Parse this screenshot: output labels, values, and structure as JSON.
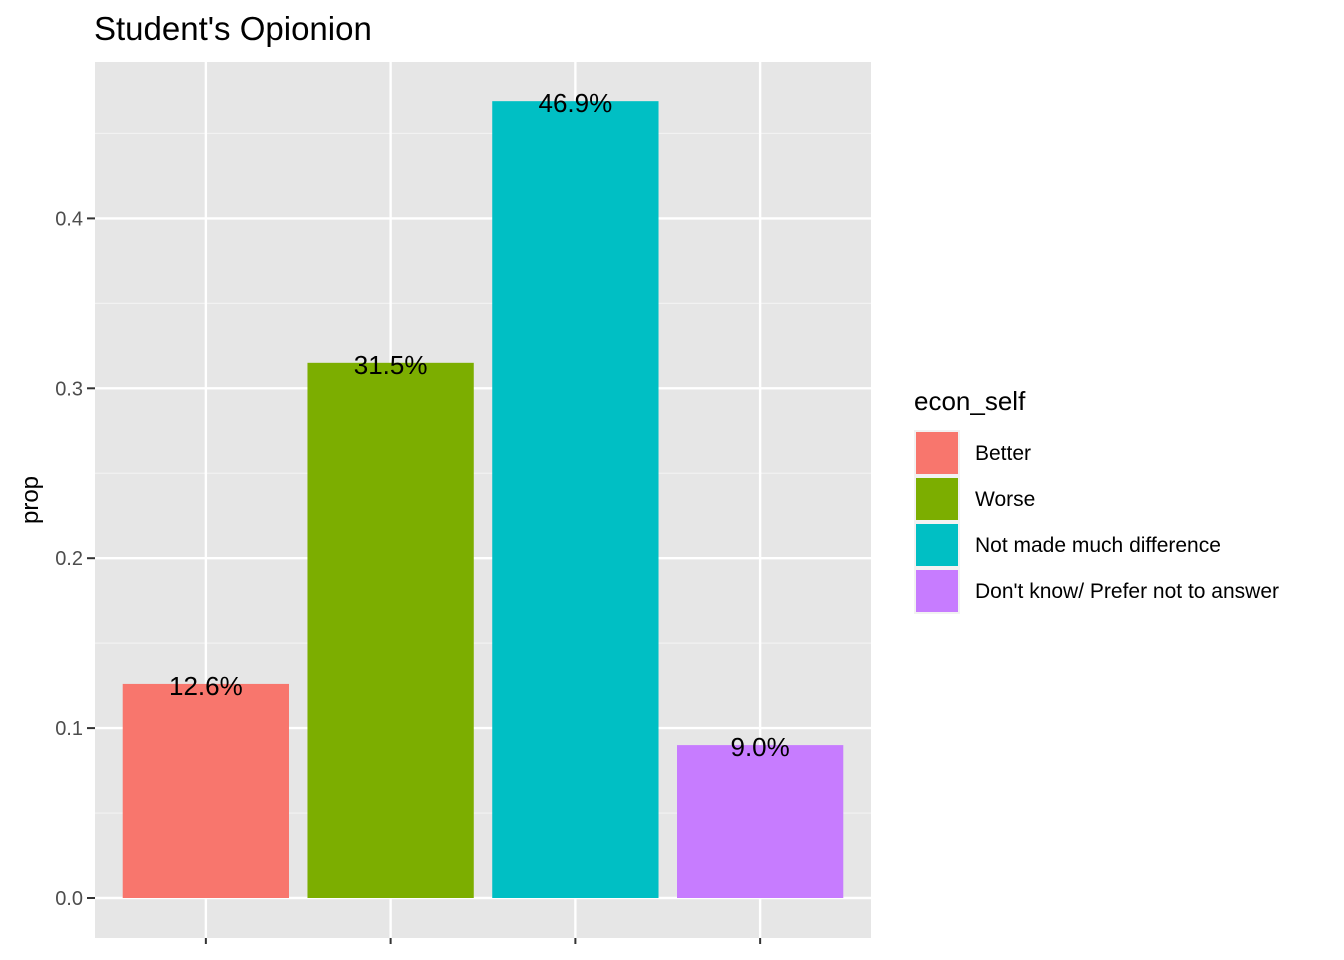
{
  "chart_data": {
    "type": "bar",
    "title": "Student's Opionion",
    "xlabel": "",
    "ylabel": "prop",
    "ylim": [
      0,
      0.48
    ],
    "y_ticks": [
      0.0,
      0.1,
      0.2,
      0.3,
      0.4
    ],
    "y_tick_labels": [
      "0.0",
      "0.1",
      "0.2",
      "0.3",
      "0.4"
    ],
    "categories": [
      "Better",
      "Worse",
      "Not made much difference",
      "Don't know/ Prefer not to answer"
    ],
    "values": [
      0.126,
      0.315,
      0.469,
      0.09
    ],
    "data_labels": [
      "12.6%",
      "31.5%",
      "46.9%",
      "9.0%"
    ],
    "colors": [
      "#F8766D",
      "#7CAE00",
      "#00BFC4",
      "#C77CFF"
    ],
    "legend": {
      "title": "econ_self",
      "position": "right",
      "entries": [
        "Better",
        "Worse",
        "Not made much difference",
        "Don't know/ Prefer not to answer"
      ]
    },
    "grid": true,
    "panel_background": "#EBEBEB"
  }
}
